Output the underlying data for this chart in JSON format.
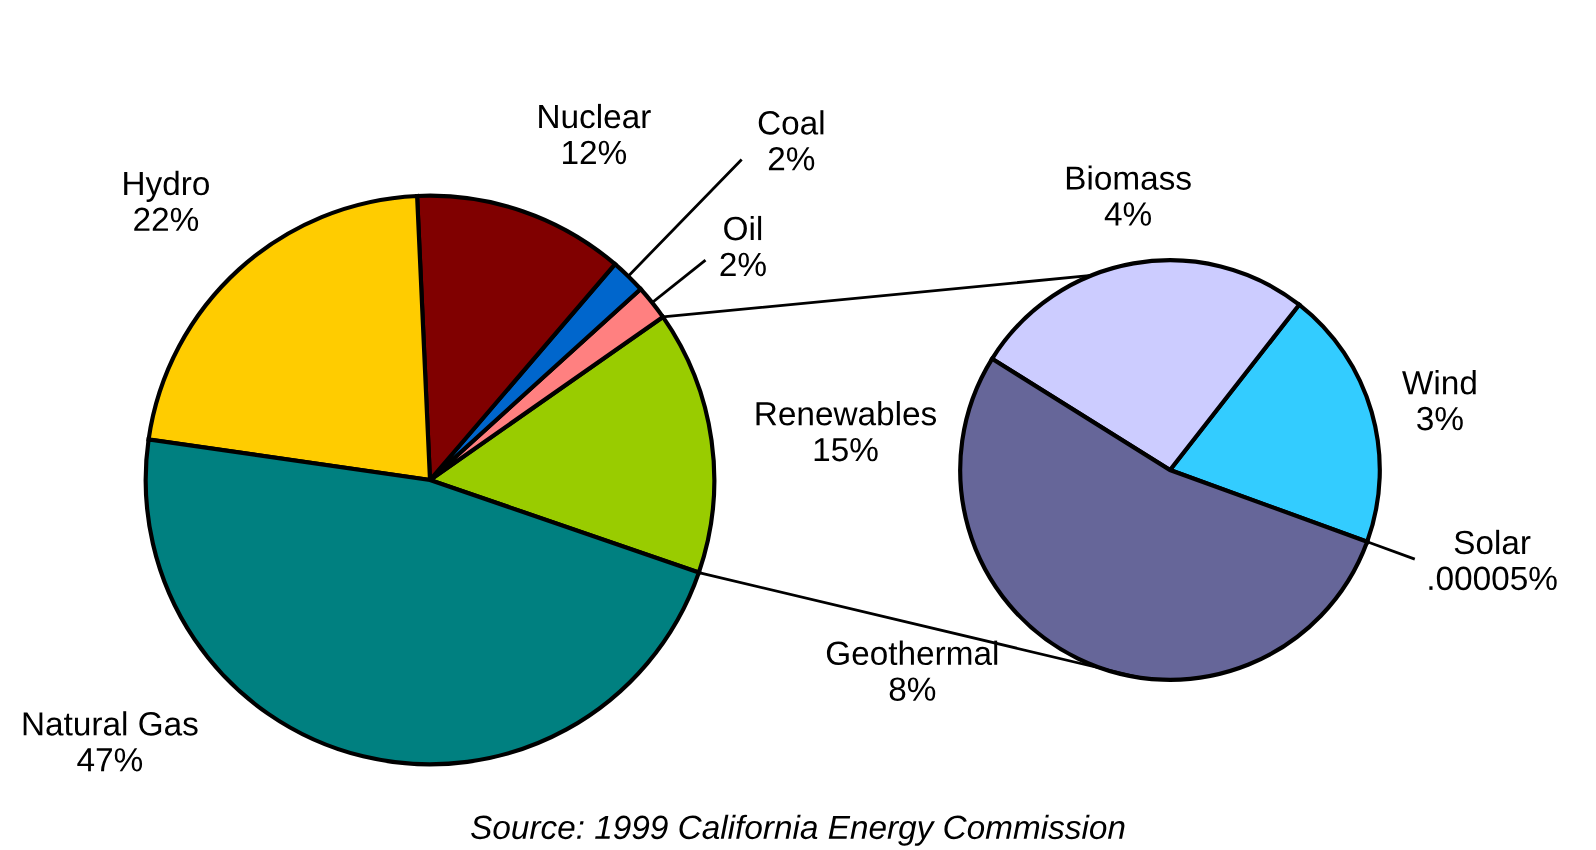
{
  "chart_data": [
    {
      "type": "pie",
      "categories": [
        "Renewables",
        "Oil",
        "Coal",
        "Nuclear",
        "Hydro",
        "Natural Gas"
      ],
      "values": [
        15,
        2,
        2,
        12,
        22,
        47
      ],
      "value_labels": [
        "15%",
        "2%",
        "2%",
        "12%",
        "22%",
        "47%"
      ],
      "colors": [
        "#99cc00",
        "#ff8080",
        "#0066cc",
        "#800000",
        "#ffcc00",
        "#008080"
      ],
      "annotations": [
        "Source: 1999 California Energy Commission"
      ]
    },
    {
      "type": "pie",
      "categories": [
        "Solar",
        "Wind",
        "Biomass",
        "Geothermal"
      ],
      "values": [
        5e-05,
        3,
        4,
        8
      ],
      "value_labels": [
        ".00005%",
        "3%",
        "4%",
        "8%"
      ],
      "colors": [
        "#ffff99",
        "#33ccff",
        "#ccccff",
        "#666699"
      ]
    }
  ]
}
